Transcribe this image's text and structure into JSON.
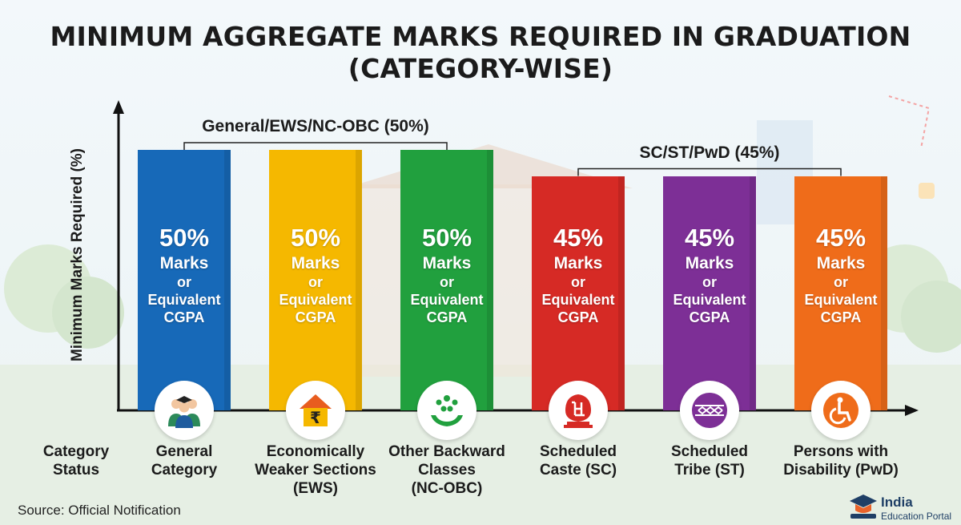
{
  "chart_data": {
    "type": "bar",
    "title": "MINIMUM AGGREGATE MARKS REQUIRED IN GRADUATION (CATEGORY-WISE)",
    "title_lines": [
      "MINIMUM AGGREGATE MARKS REQUIRED IN GRADUATION",
      "(CATEGORY-WISE)"
    ],
    "ylabel": "Minimum Marks Required (%)",
    "xlabel": "Category Status",
    "xlabel_lines": [
      "Category",
      "Status"
    ],
    "ylim": [
      0,
      50
    ],
    "grid": false,
    "categories": [
      "General Category",
      "Economically Weaker Sections (EWS)",
      "Other Backward Classes (NC-OBC)",
      "Scheduled Caste (SC)",
      "Scheduled Tribe (ST)",
      "Persons with Disability (PwD)"
    ],
    "category_lines": [
      [
        "General",
        "Category"
      ],
      [
        "Economically",
        "Weaker Sections",
        "(EWS)"
      ],
      [
        "Other Backward",
        "Classes",
        "(NC-OBC)"
      ],
      [
        "Scheduled",
        "Caste (SC)"
      ],
      [
        "Scheduled",
        "Tribe (ST)"
      ],
      [
        "Persons with",
        "Disability (PwD)"
      ]
    ],
    "values": [
      50,
      50,
      50,
      45,
      45,
      45
    ],
    "bar_labels": [
      {
        "pct": "50%",
        "lines": [
          "Marks",
          "or",
          "Equivalent",
          "CGPA"
        ]
      },
      {
        "pct": "50%",
        "lines": [
          "Marks",
          "or",
          "Equivalent",
          "CGPA"
        ]
      },
      {
        "pct": "50%",
        "lines": [
          "Marks",
          "or",
          "Equivalent",
          "CGPA"
        ]
      },
      {
        "pct": "45%",
        "lines": [
          "Marks",
          "or",
          "Equivalent",
          "CGPA"
        ]
      },
      {
        "pct": "45%",
        "lines": [
          "Marks",
          "or",
          "Equivalent",
          "CGPA"
        ]
      },
      {
        "pct": "45%",
        "lines": [
          "Marks",
          "or",
          "Equivalent",
          "CGPA"
        ]
      }
    ],
    "colors": [
      "#1769b8",
      "#f5b800",
      "#21a03e",
      "#d62a25",
      "#7d2f96",
      "#ef6c1a"
    ],
    "icons": [
      "graduates-icon",
      "house-rupee-icon",
      "community-hands-icon",
      "swastika-emblem-icon",
      "tribal-pattern-icon",
      "wheelchair-icon"
    ],
    "groups": [
      {
        "label": "General/EWS/NC-OBC (50%)",
        "from": 0,
        "to": 2
      },
      {
        "label": "SC/ST/PwD (45%)",
        "from": 3,
        "to": 5
      }
    ]
  },
  "footer": {
    "source": "Source: Official Notification",
    "brand_line1": "India",
    "brand_line2": "Education Portal",
    "brand_icon": "graduation-cap-book-icon"
  }
}
